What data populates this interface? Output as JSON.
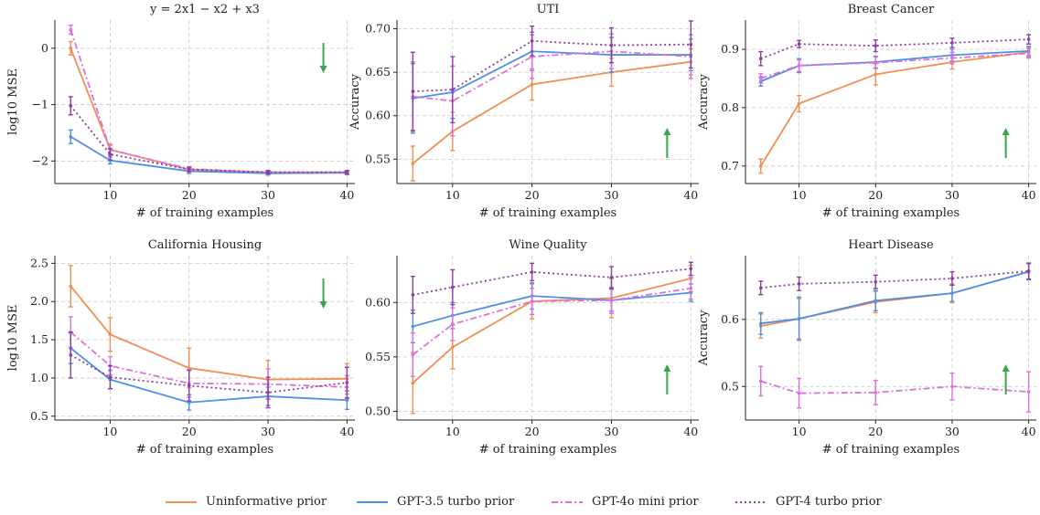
{
  "colors": {
    "uninformative": "#f28e52",
    "gpt35": "#4f8fe6",
    "gpt4o_mini": "#dd6fdc",
    "gpt4_turbo": "#8b3fa0",
    "arrow": "#3aa64b"
  },
  "legend": [
    {
      "name": "Uninformative prior",
      "key": "uninformative",
      "dash": "solid"
    },
    {
      "name": "GPT-3.5 turbo prior",
      "key": "gpt35",
      "dash": "solid"
    },
    {
      "name": "GPT-4o mini prior",
      "key": "gpt4o_mini",
      "dash": "dashdot"
    },
    {
      "name": "GPT-4 turbo prior",
      "key": "gpt4_turbo",
      "dash": "dot"
    }
  ],
  "chart_data": [
    {
      "type": "line",
      "title": "y = 2x1 − x2 + x3",
      "xlabel": "# of training examples",
      "ylabel": "log10 MSE",
      "x": [
        5,
        10,
        20,
        30,
        40
      ],
      "xticks": [
        10,
        20,
        30,
        40
      ],
      "ylim": [
        -2.4,
        0.5
      ],
      "yticks": [
        0,
        -1,
        -2
      ],
      "ytick_labels": [
        "0",
        "−1",
        "−2"
      ],
      "arrow": "down",
      "series": [
        {
          "name": "Uninformative prior",
          "values": [
            0.0,
            -1.8,
            -2.15,
            -2.2,
            -2.2
          ],
          "err": [
            0.12,
            0.08,
            0.04,
            0.03,
            0.03
          ]
        },
        {
          "name": "GPT-3.5 turbo prior",
          "values": [
            -1.57,
            -1.99,
            -2.18,
            -2.22,
            -2.21
          ],
          "err": [
            0.12,
            0.06,
            0.04,
            0.03,
            0.03
          ]
        },
        {
          "name": "GPT-4o mini prior",
          "values": [
            0.33,
            -1.8,
            -2.14,
            -2.2,
            -2.2
          ],
          "err": [
            0.08,
            0.1,
            0.04,
            0.03,
            0.03
          ]
        },
        {
          "name": "GPT-4 turbo prior",
          "values": [
            -1.02,
            -1.88,
            -2.15,
            -2.2,
            -2.2
          ],
          "err": [
            0.16,
            0.1,
            0.04,
            0.03,
            0.03
          ]
        }
      ]
    },
    {
      "type": "line",
      "title": "UTI",
      "xlabel": "# of training examples",
      "ylabel": "Accuracy",
      "x": [
        5,
        10,
        20,
        30,
        40
      ],
      "xticks": [
        10,
        20,
        30,
        40
      ],
      "ylim": [
        0.522,
        0.71
      ],
      "yticks": [
        0.55,
        0.6,
        0.65,
        0.7
      ],
      "ytick_labels": [
        "0.55",
        "0.60",
        "0.65",
        "0.70"
      ],
      "arrow": "up",
      "series": [
        {
          "name": "Uninformative prior",
          "values": [
            0.545,
            0.582,
            0.636,
            0.65,
            0.662
          ],
          "err": [
            0.02,
            0.022,
            0.018,
            0.016,
            0.015
          ]
        },
        {
          "name": "GPT-3.5 turbo prior",
          "values": [
            0.62,
            0.627,
            0.674,
            0.67,
            0.67
          ],
          "err": [
            0.04,
            0.03,
            0.022,
            0.02,
            0.018
          ]
        },
        {
          "name": "GPT-4o mini prior",
          "values": [
            0.622,
            0.617,
            0.668,
            0.674,
            0.668
          ],
          "err": [
            0.04,
            0.04,
            0.025,
            0.02,
            0.025
          ]
        },
        {
          "name": "GPT-4 turbo prior",
          "values": [
            0.628,
            0.63,
            0.686,
            0.681,
            0.682
          ],
          "err": [
            0.045,
            0.038,
            0.017,
            0.02,
            0.027
          ]
        }
      ]
    },
    {
      "type": "line",
      "title": "Breast Cancer",
      "xlabel": "# of training examples",
      "ylabel": "Accuracy",
      "x": [
        5,
        10,
        20,
        30,
        40
      ],
      "xticks": [
        10,
        20,
        30,
        40
      ],
      "ylim": [
        0.67,
        0.95
      ],
      "yticks": [
        0.7,
        0.8,
        0.9
      ],
      "ytick_labels": [
        "0.7",
        "0.8",
        "0.9"
      ],
      "arrow": "up",
      "series": [
        {
          "name": "Uninformative prior",
          "values": [
            0.7,
            0.807,
            0.857,
            0.878,
            0.895
          ],
          "err": [
            0.012,
            0.014,
            0.018,
            0.012,
            0.008
          ]
        },
        {
          "name": "GPT-3.5 turbo prior",
          "values": [
            0.845,
            0.872,
            0.878,
            0.89,
            0.897
          ],
          "err": [
            0.008,
            0.012,
            0.01,
            0.01,
            0.008
          ]
        },
        {
          "name": "GPT-4o mini prior",
          "values": [
            0.85,
            0.872,
            0.877,
            0.885,
            0.893
          ],
          "err": [
            0.008,
            0.01,
            0.01,
            0.01,
            0.008
          ]
        },
        {
          "name": "GPT-4 turbo prior",
          "values": [
            0.884,
            0.909,
            0.906,
            0.911,
            0.917
          ],
          "err": [
            0.012,
            0.006,
            0.01,
            0.008,
            0.008
          ]
        }
      ]
    },
    {
      "type": "line",
      "title": "California Housing",
      "xlabel": "# of training examples",
      "ylabel": "log10 MSE",
      "x": [
        5,
        10,
        20,
        30,
        40
      ],
      "xticks": [
        10,
        20,
        30,
        40
      ],
      "ylim": [
        0.45,
        2.6
      ],
      "yticks": [
        0.5,
        1.0,
        1.5,
        2.0,
        2.5
      ],
      "ytick_labels": [
        "0.5",
        "1.0",
        "1.5",
        "2.0",
        "2.5"
      ],
      "arrow": "down",
      "series": [
        {
          "name": "Uninformative prior",
          "values": [
            2.2,
            1.57,
            1.13,
            0.98,
            0.99
          ],
          "err": [
            0.27,
            0.22,
            0.26,
            0.25,
            0.2
          ]
        },
        {
          "name": "GPT-3.5 turbo prior",
          "values": [
            1.39,
            0.98,
            0.68,
            0.76,
            0.71
          ],
          "err": [
            0.2,
            0.12,
            0.1,
            0.12,
            0.12
          ]
        },
        {
          "name": "GPT-4o mini prior",
          "values": [
            1.6,
            1.16,
            0.93,
            0.92,
            0.88
          ],
          "err": [
            0.2,
            0.12,
            0.18,
            0.2,
            0.15
          ]
        },
        {
          "name": "GPT-4 turbo prior",
          "values": [
            1.3,
            1.01,
            0.9,
            0.81,
            0.94
          ],
          "err": [
            0.3,
            0.15,
            0.2,
            0.2,
            0.2
          ]
        }
      ]
    },
    {
      "type": "line",
      "title": "Wine Quality",
      "xlabel": "# of training examples",
      "ylabel": "",
      "x": [
        5,
        10,
        20,
        30,
        40
      ],
      "xticks": [
        10,
        20,
        30,
        40
      ],
      "ylim": [
        0.492,
        0.643
      ],
      "yticks": [
        0.5,
        0.55,
        0.6
      ],
      "ytick_labels": [
        "0.50",
        "0.55",
        "0.60"
      ],
      "arrow": "up",
      "series": [
        {
          "name": "Uninformative prior",
          "values": [
            0.526,
            0.559,
            0.601,
            0.604,
            0.622
          ],
          "err": [
            0.028,
            0.02,
            0.016,
            0.018,
            0.012
          ]
        },
        {
          "name": "GPT-3.5 turbo prior",
          "values": [
            0.578,
            0.588,
            0.606,
            0.602,
            0.609
          ],
          "err": [
            0.015,
            0.012,
            0.012,
            0.01,
            0.008
          ]
        },
        {
          "name": "GPT-4o mini prior",
          "values": [
            0.552,
            0.58,
            0.601,
            0.602,
            0.613
          ],
          "err": [
            0.02,
            0.015,
            0.012,
            0.012,
            0.01
          ]
        },
        {
          "name": "GPT-4 turbo prior",
          "values": [
            0.607,
            0.614,
            0.628,
            0.623,
            0.631
          ],
          "err": [
            0.017,
            0.016,
            0.008,
            0.01,
            0.006
          ]
        }
      ]
    },
    {
      "type": "line",
      "title": "Heart Disease",
      "xlabel": "# of training examples",
      "ylabel": "Accuracy",
      "x": [
        5,
        10,
        20,
        30,
        40
      ],
      "xticks": [
        10,
        20,
        30,
        40
      ],
      "ylim": [
        0.45,
        0.695
      ],
      "yticks": [
        0.5,
        0.6
      ],
      "ytick_labels": [
        "0.5",
        "0.6"
      ],
      "arrow": "up",
      "series": [
        {
          "name": "Uninformative prior",
          "values": [
            0.59,
            0.601,
            0.626,
            0.639,
            0.671
          ],
          "err": [
            0.018,
            0.03,
            0.016,
            0.014,
            0.012
          ]
        },
        {
          "name": "GPT-3.5 turbo prior",
          "values": [
            0.594,
            0.601,
            0.628,
            0.639,
            0.671
          ],
          "err": [
            0.016,
            0.032,
            0.015,
            0.012,
            0.012
          ]
        },
        {
          "name": "GPT-4o mini prior",
          "values": [
            0.508,
            0.49,
            0.491,
            0.5,
            0.492
          ],
          "err": [
            0.022,
            0.022,
            0.018,
            0.02,
            0.03
          ]
        },
        {
          "name": "GPT-4 turbo prior",
          "values": [
            0.647,
            0.653,
            0.656,
            0.661,
            0.672
          ],
          "err": [
            0.01,
            0.01,
            0.01,
            0.01,
            0.012
          ]
        }
      ]
    }
  ]
}
